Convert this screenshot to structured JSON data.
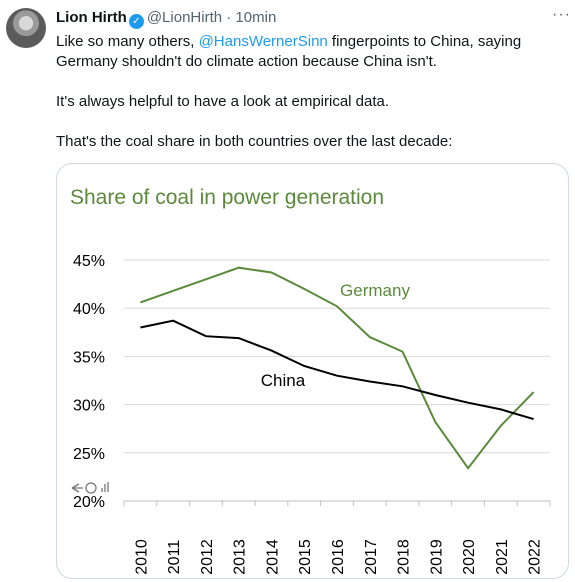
{
  "tweet": {
    "author_name": "Lion Hirth",
    "handle": "@LionHirth",
    "time": "· 10min",
    "verified_icon": "check",
    "more_icon": "···",
    "text_line1_pre": "Like so many others, ",
    "mention": "@HansWernerSinn",
    "text_line1_post": " fingerpoints to China, saying Germany shouldn't do climate action because China isn't.",
    "paragraph2": "It's always helpful to have a look at empirical data.",
    "paragraph3": "That's the coal share in both countries over the last decade:"
  },
  "chart_data": {
    "type": "line",
    "title": "Share of coal in power generation",
    "x": [
      "2010",
      "2011",
      "2012",
      "2013",
      "2014",
      "2015",
      "2016",
      "2017",
      "2018",
      "2019",
      "2020",
      "2021",
      "2022"
    ],
    "y_ticks": [
      "20%",
      "25%",
      "30%",
      "35%",
      "40%",
      "45%"
    ],
    "ylim": [
      20,
      47
    ],
    "grid": true,
    "series": [
      {
        "name": "Germany",
        "color": "#5b8a3c",
        "values": [
          40.6,
          41.8,
          43.0,
          44.2,
          43.7,
          42.0,
          40.2,
          37.0,
          35.5,
          28.2,
          23.4,
          27.8,
          31.3
        ]
      },
      {
        "name": "China",
        "color": "#000000",
        "values": [
          38.0,
          38.7,
          37.1,
          36.9,
          35.6,
          34.0,
          33.0,
          32.4,
          31.9,
          31.0,
          30.2,
          29.5,
          28.5
        ]
      }
    ]
  }
}
